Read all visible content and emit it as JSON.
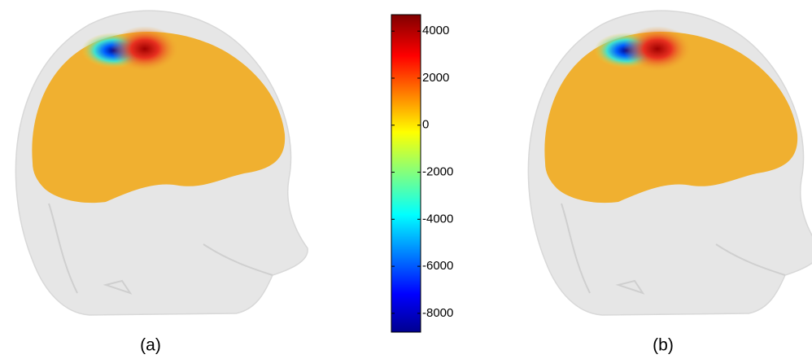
{
  "panels": [
    {
      "label": "(a)"
    },
    {
      "label": "(b)"
    }
  ],
  "colorbar": {
    "lim": [
      -8800,
      4700
    ],
    "ticks": [
      4000,
      2000,
      0,
      -2000,
      -4000,
      -6000,
      -8000
    ]
  }
}
